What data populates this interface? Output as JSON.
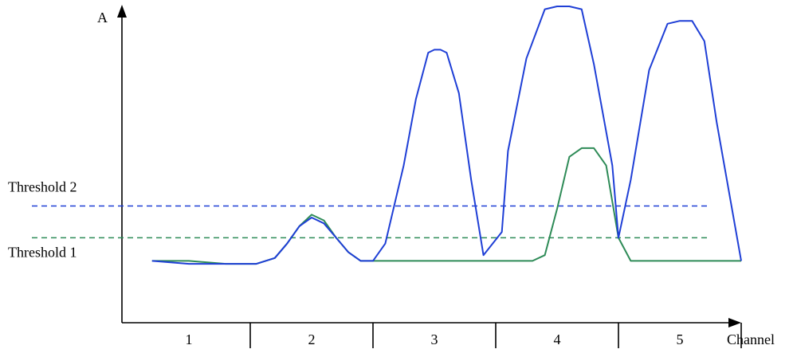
{
  "chart_data": {
    "type": "line",
    "title": "",
    "ylabel": "A",
    "xlabel": "Channel",
    "categories": [
      "1",
      "2",
      "3",
      "4",
      "5"
    ],
    "x_range": [
      0.5,
      5.5
    ],
    "y_range": [
      0,
      100
    ],
    "grid": false,
    "colors": {
      "blue": "#1f3fd6",
      "green": "#2e8b57",
      "axis": "#000000"
    },
    "thresholds": [
      {
        "name": "Threshold 2",
        "value": 31,
        "color": "#1f3fd6",
        "style": "dashed"
      },
      {
        "name": "Threshold 1",
        "value": 20,
        "color": "#2e8b57",
        "style": "dashed"
      }
    ],
    "series": [
      {
        "color": "#1f3fd6",
        "x": [
          0.7,
          1.0,
          1.3,
          1.55,
          1.7,
          1.8,
          1.9,
          2.0,
          2.1,
          2.2,
          2.3,
          2.4,
          2.5,
          2.6,
          2.75,
          2.85,
          2.95,
          3.0,
          3.05,
          3.1,
          3.2,
          3.3,
          3.4,
          3.55,
          3.6,
          3.75,
          3.9,
          4.0,
          4.1,
          4.2,
          4.3,
          4.45,
          4.5,
          4.6,
          4.75,
          4.9,
          5.0,
          5.1,
          5.2,
          5.3,
          5.5
        ],
        "y": [
          12,
          11,
          11,
          11,
          13,
          18,
          24,
          27,
          25,
          20,
          15,
          12,
          12,
          18,
          45,
          68,
          84,
          85,
          85,
          84,
          70,
          40,
          14,
          22,
          50,
          82,
          99,
          100,
          100,
          99,
          80,
          45,
          20,
          40,
          78,
          94,
          95,
          95,
          88,
          60,
          12
        ]
      },
      {
        "color": "#2e8b57",
        "x": [
          0.7,
          1.0,
          1.3,
          1.55,
          1.7,
          1.8,
          1.9,
          2.0,
          2.1,
          2.2,
          2.3,
          2.4,
          2.5,
          2.6,
          2.8,
          3.0,
          3.2,
          3.4,
          3.5,
          3.6,
          3.7,
          3.8,
          3.9,
          4.0,
          4.1,
          4.2,
          4.3,
          4.4,
          4.5,
          4.6,
          4.8,
          5.0,
          5.2,
          5.5
        ],
        "y": [
          12,
          12,
          11,
          11,
          13,
          18,
          24,
          28,
          26,
          20,
          15,
          12,
          12,
          12,
          12,
          12,
          12,
          12,
          12,
          12,
          12,
          12,
          14,
          30,
          48,
          51,
          51,
          45,
          20,
          12,
          12,
          12,
          12,
          12
        ]
      }
    ]
  }
}
